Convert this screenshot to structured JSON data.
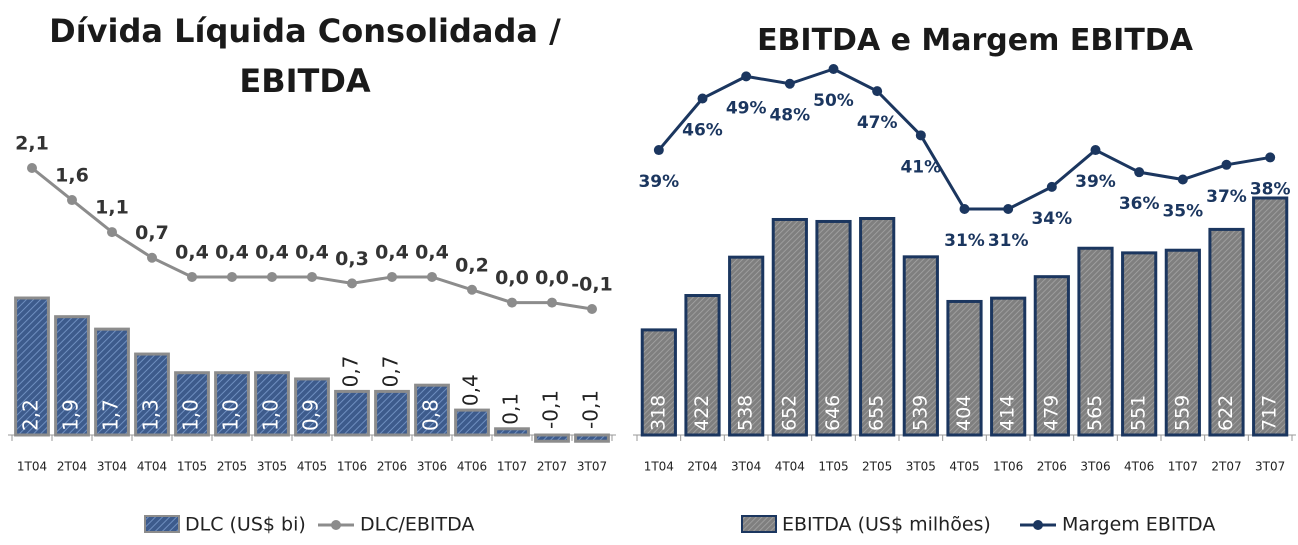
{
  "chart_data": [
    {
      "type": "bar_line",
      "title": "Dívida Líquida Consolidada / EBITDA",
      "categories": [
        "1T04",
        "2T04",
        "3T04",
        "4T04",
        "1T05",
        "2T05",
        "3T05",
        "4T05",
        "1T06",
        "2T06",
        "3T06",
        "4T06",
        "1T07",
        "2T07",
        "3T07"
      ],
      "legend": "bottom",
      "series": [
        {
          "name": "DLC (US$ bi)",
          "type": "bar",
          "color": "#3d5b8c",
          "values": [
            2.2,
            1.9,
            1.7,
            1.3,
            1.0,
            1.0,
            1.0,
            0.9,
            0.7,
            0.7,
            0.8,
            0.4,
            0.1,
            -0.1,
            -0.1
          ],
          "value_labels": [
            "2,2",
            "1,9",
            "1,7",
            "1,3",
            "1,0",
            "1,0",
            "1,0",
            "0,9",
            "0,7",
            "0,7",
            "0,8",
            "0,4",
            "0,1",
            "-0,1",
            "-0,1"
          ]
        },
        {
          "name": "DLC/EBITDA",
          "type": "line",
          "axis": "y2",
          "color": "#8c8c8c",
          "values": [
            2.1,
            1.6,
            1.1,
            0.7,
            0.4,
            0.4,
            0.4,
            0.4,
            0.3,
            0.4,
            0.4,
            0.2,
            0.0,
            0.0,
            -0.1
          ],
          "value_labels": [
            "2,1",
            "1,6",
            "1,1",
            "0,7",
            "0,4",
            "0,4",
            "0,4",
            "0,4",
            "0,3",
            "0,4",
            "0,4",
            "0,2",
            "0,0",
            "0,0",
            "-0,1"
          ]
        }
      ]
    },
    {
      "type": "bar_line",
      "title": "EBITDA e Margem EBITDA",
      "categories": [
        "1T04",
        "2T04",
        "3T04",
        "4T04",
        "1T05",
        "2T05",
        "3T05",
        "4T05",
        "1T06",
        "2T06",
        "3T06",
        "4T06",
        "1T07",
        "2T07",
        "3T07"
      ],
      "legend": "bottom",
      "series": [
        {
          "name": "EBITDA (US$ milhões)",
          "type": "bar",
          "color": "#7f7f7f",
          "values": [
            318,
            422,
            538,
            652,
            646,
            655,
            539,
            404,
            414,
            479,
            565,
            551,
            559,
            622,
            717
          ]
        },
        {
          "name": "Margem EBITDA",
          "type": "line",
          "axis": "y2",
          "color": "#1b365f",
          "values": [
            39,
            46,
            49,
            48,
            50,
            47,
            41,
            31,
            31,
            34,
            39,
            36,
            35,
            37,
            38
          ],
          "value_labels": [
            "39%",
            "46%",
            "49%",
            "48%",
            "50%",
            "47%",
            "41%",
            "31%",
            "31%",
            "34%",
            "39%",
            "36%",
            "35%",
            "37%",
            "38%"
          ]
        }
      ]
    }
  ]
}
